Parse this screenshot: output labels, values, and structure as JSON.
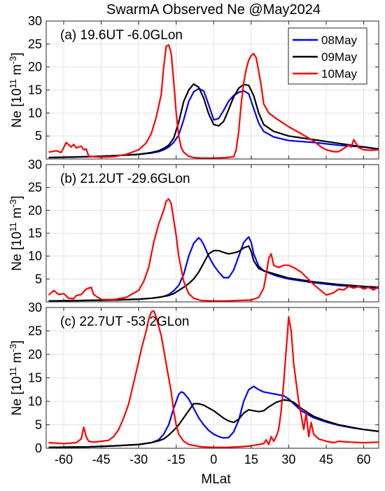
{
  "figure_title": "SwarmA Observed Ne @May2024",
  "chart_data": [
    {
      "type": "line",
      "title": "(a) 19.6UT -6.0GLon",
      "xlabel": "",
      "ylabel": "Ne [10^11 m^-3]",
      "ylabel_main": "Ne [10",
      "ylabel_exp1": "11",
      "ylabel_mid": " m",
      "ylabel_exp2": "-3",
      "ylabel_end": "]",
      "xlim": [
        -67,
        66
      ],
      "ylim": [
        0,
        30
      ],
      "yticks": [
        5,
        10,
        15,
        20,
        25,
        30
      ],
      "xticks": [
        -60,
        -45,
        -30,
        -15,
        0,
        15,
        30,
        45,
        60
      ],
      "grid": true,
      "legend": "top-right",
      "series": [
        {
          "name": "08May",
          "color": "#0000ff",
          "x": [
            -66,
            -50,
            -40,
            -30,
            -25,
            -22,
            -20,
            -18,
            -16,
            -14,
            -12,
            -10,
            -8,
            -6,
            -4,
            -2,
            0,
            2,
            4,
            6,
            8,
            10,
            12,
            14,
            16,
            18,
            20,
            24,
            30,
            40,
            50,
            60,
            66
          ],
          "y": [
            0.3,
            0.5,
            0.7,
            1.0,
            1.3,
            1.6,
            2.0,
            2.6,
            3.6,
            5.2,
            8.5,
            12.5,
            14.6,
            15.3,
            14.8,
            11.8,
            8.5,
            8.8,
            10.6,
            12.6,
            13.8,
            14.5,
            14.8,
            14.2,
            11.0,
            7.8,
            6.0,
            4.8,
            4.0,
            3.6,
            3.0,
            2.6,
            2.2
          ]
        },
        {
          "name": "09May",
          "color": "#000000",
          "x": [
            -66,
            -50,
            -40,
            -30,
            -25,
            -22,
            -20,
            -18,
            -16,
            -14,
            -12,
            -10,
            -8,
            -6,
            -4,
            -2,
            0,
            2,
            4,
            6,
            8,
            10,
            12,
            14,
            16,
            18,
            20,
            24,
            30,
            40,
            50,
            60,
            66
          ],
          "y": [
            0.3,
            0.5,
            0.7,
            1.0,
            1.4,
            1.8,
            2.3,
            3.0,
            4.5,
            8.0,
            12.5,
            15.0,
            16.3,
            15.6,
            13.2,
            9.8,
            7.5,
            7.2,
            8.2,
            10.8,
            13.5,
            15.4,
            16.2,
            16.0,
            13.8,
            10.0,
            7.5,
            6.0,
            5.0,
            4.2,
            3.4,
            2.6,
            2.1
          ]
        },
        {
          "name": "10May",
          "color": "#ff0000",
          "x": [
            -66,
            -63,
            -61,
            -59,
            -57,
            -56,
            -55,
            -53,
            -52,
            -51,
            -50,
            -45,
            -40,
            -35,
            -30,
            -27,
            -25,
            -23,
            -21,
            -20,
            -19,
            -18,
            -17,
            -16,
            -15,
            -14,
            -13,
            -12,
            -11,
            -10,
            -8,
            -5,
            0,
            5,
            8,
            9,
            10,
            11,
            12,
            13,
            14,
            15,
            16,
            17,
            18,
            19,
            20,
            22,
            25,
            30,
            35,
            40,
            43,
            45,
            48,
            50,
            52,
            54,
            55,
            56,
            58,
            60,
            63,
            66
          ],
          "y": [
            1.5,
            1.8,
            1.4,
            3.6,
            2.6,
            3.2,
            2.4,
            2.8,
            2.0,
            2.2,
            0.6,
            0.4,
            0.5,
            1.0,
            2.0,
            3.5,
            5.5,
            9.0,
            14.0,
            20.0,
            24.5,
            24.8,
            23.0,
            17.0,
            10.0,
            5.0,
            2.5,
            1.5,
            1.0,
            0.6,
            0.3,
            0.2,
            0.2,
            0.3,
            0.5,
            2.0,
            6.0,
            12.0,
            16.5,
            19.5,
            21.5,
            22.5,
            22.9,
            22.0,
            19.0,
            16.0,
            12.0,
            10.0,
            8.8,
            7.0,
            5.5,
            3.9,
            2.6,
            2.0,
            1.6,
            1.6,
            2.3,
            3.0,
            2.6,
            4.2,
            2.5,
            2.0,
            1.9,
            2.0
          ]
        }
      ]
    },
    {
      "type": "line",
      "title": "(b) 21.2UT -29.6GLon",
      "xlabel": "",
      "ylabel": "Ne [10^11 m^-3]",
      "ylabel_main": "Ne [10",
      "ylabel_exp1": "11",
      "ylabel_mid": " m",
      "ylabel_exp2": "-3",
      "ylabel_end": "]",
      "xlim": [
        -67,
        66
      ],
      "ylim": [
        0,
        30
      ],
      "yticks": [
        5,
        10,
        15,
        20,
        25,
        30
      ],
      "xticks": [
        -60,
        -45,
        -30,
        -15,
        0,
        15,
        30,
        45,
        60
      ],
      "grid": true,
      "series": [
        {
          "name": "08May",
          "color": "#0000ff",
          "x": [
            -66,
            -40,
            -30,
            -25,
            -22,
            -20,
            -18,
            -16,
            -14,
            -12,
            -10,
            -8,
            -6,
            -5,
            -4,
            -2,
            0,
            2,
            4,
            6,
            8,
            10,
            12,
            14,
            15,
            16,
            18,
            20,
            25,
            30,
            40,
            50,
            60,
            66
          ],
          "y": [
            0.2,
            0.4,
            0.6,
            0.8,
            1.0,
            1.2,
            1.6,
            2.4,
            3.6,
            6.0,
            10.0,
            12.8,
            14.0,
            13.5,
            12.5,
            10.0,
            8.0,
            6.5,
            5.3,
            5.3,
            7.0,
            10.0,
            13.0,
            14.2,
            13.0,
            10.5,
            7.8,
            6.8,
            5.7,
            5.0,
            4.2,
            3.6,
            3.2,
            3.0
          ]
        },
        {
          "name": "09May",
          "color": "#000000",
          "x": [
            -66,
            -40,
            -30,
            -25,
            -22,
            -20,
            -18,
            -16,
            -14,
            -12,
            -10,
            -8,
            -6,
            -4,
            -2,
            0,
            2,
            4,
            6,
            8,
            10,
            12,
            14,
            15,
            16,
            18,
            20,
            25,
            30,
            40,
            50,
            60,
            66
          ],
          "y": [
            0.2,
            0.4,
            0.6,
            0.8,
            1.0,
            1.2,
            1.4,
            1.8,
            2.5,
            3.2,
            4.0,
            5.0,
            6.5,
            8.5,
            10.5,
            11.2,
            11.2,
            10.8,
            10.5,
            10.7,
            11.0,
            11.8,
            12.2,
            11.0,
            9.0,
            7.3,
            6.8,
            6.0,
            5.2,
            4.4,
            3.8,
            3.4,
            3.2
          ]
        },
        {
          "name": "10May",
          "color": "#ff0000",
          "x": [
            -66,
            -64,
            -62,
            -60,
            -58,
            -56,
            -55,
            -53,
            -51,
            -49,
            -48,
            -45,
            -40,
            -35,
            -30,
            -28,
            -26,
            -24,
            -22,
            -20,
            -19,
            -18,
            -17,
            -16,
            -15,
            -14,
            -12,
            -10,
            -8,
            -5,
            0,
            5,
            10,
            15,
            18,
            20,
            21,
            22,
            23,
            24,
            26,
            28,
            30,
            32,
            35,
            40,
            45,
            48,
            50,
            52,
            54,
            56,
            58,
            60,
            62,
            64,
            66
          ],
          "y": [
            1.5,
            2.5,
            1.6,
            1.8,
            0.8,
            0.7,
            1.4,
            1.6,
            2.8,
            3.2,
            1.6,
            0.5,
            0.5,
            1.0,
            2.5,
            4.5,
            7.5,
            13.0,
            17.0,
            20.0,
            22.0,
            22.5,
            21.5,
            18.0,
            14.5,
            10.0,
            4.5,
            1.8,
            0.8,
            0.3,
            0.2,
            0.2,
            0.3,
            0.4,
            1.0,
            3.0,
            6.0,
            9.5,
            10.5,
            8.0,
            7.5,
            8.0,
            8.0,
            7.5,
            6.5,
            3.8,
            1.5,
            2.0,
            2.8,
            2.6,
            3.4,
            3.0,
            3.4,
            2.8,
            3.2,
            2.6,
            3.4
          ]
        }
      ]
    },
    {
      "type": "line",
      "title": "(c) 22.7UT -53.2GLon",
      "xlabel": "MLat",
      "ylabel": "Ne [10^11 m^-3]",
      "ylabel_main": "Ne [10",
      "ylabel_exp1": "11",
      "ylabel_mid": " m",
      "ylabel_exp2": "-3",
      "ylabel_end": "]",
      "xlim": [
        -67,
        66
      ],
      "ylim": [
        0,
        30
      ],
      "yticks": [
        0,
        5,
        10,
        15,
        20,
        25,
        30
      ],
      "xticks": [
        -60,
        -45,
        -30,
        -15,
        0,
        15,
        30,
        45,
        60
      ],
      "grid": true,
      "series": [
        {
          "name": "08May",
          "color": "#0000ff",
          "x": [
            -66,
            -50,
            -40,
            -30,
            -25,
            -22,
            -20,
            -18,
            -16,
            -14,
            -13,
            -12,
            -10,
            -8,
            -6,
            -4,
            -2,
            0,
            2,
            4,
            6,
            8,
            10,
            12,
            14,
            16,
            18,
            20,
            22,
            25,
            28,
            30,
            32,
            35,
            40,
            45,
            50,
            55,
            60,
            66
          ],
          "y": [
            0.2,
            0.3,
            0.5,
            0.8,
            1.2,
            1.8,
            3.0,
            5.0,
            8.5,
            11.5,
            12.0,
            11.8,
            10.5,
            8.5,
            6.5,
            5.0,
            3.8,
            3.0,
            2.5,
            2.2,
            2.3,
            3.5,
            6.0,
            10.0,
            12.5,
            13.2,
            12.5,
            12.0,
            11.8,
            11.5,
            11.2,
            10.5,
            9.5,
            8.0,
            6.5,
            5.6,
            4.9,
            4.4,
            4.0,
            3.6
          ]
        },
        {
          "name": "09May",
          "color": "#000000",
          "x": [
            -66,
            -50,
            -40,
            -30,
            -25,
            -22,
            -20,
            -18,
            -16,
            -14,
            -12,
            -10,
            -8,
            -6,
            -4,
            -2,
            0,
            2,
            4,
            6,
            8,
            10,
            12,
            14,
            16,
            18,
            20,
            22,
            25,
            28,
            30,
            32,
            35,
            40,
            45,
            50,
            55,
            60,
            66
          ],
          "y": [
            0.2,
            0.3,
            0.5,
            0.8,
            1.2,
            1.6,
            2.0,
            2.8,
            3.8,
            5.0,
            6.5,
            8.0,
            9.5,
            9.5,
            9.2,
            8.6,
            8.0,
            7.2,
            6.4,
            5.8,
            5.5,
            6.2,
            7.5,
            8.2,
            8.0,
            7.8,
            8.0,
            8.8,
            9.8,
            10.3,
            10.2,
            9.8,
            8.5,
            6.8,
            5.8,
            5.0,
            4.5,
            4.0,
            3.6
          ]
        },
        {
          "name": "10May",
          "color": "#ff0000",
          "x": [
            -66,
            -60,
            -55,
            -53,
            -52,
            -51,
            -50,
            -48,
            -45,
            -42,
            -40,
            -38,
            -36,
            -34,
            -32,
            -30,
            -29,
            -28,
            -27,
            -26,
            -25,
            -24,
            -23,
            -22,
            -21,
            -20,
            -19,
            -18,
            -17,
            -16,
            -15,
            -14,
            -12,
            -10,
            -5,
            0,
            5,
            10,
            15,
            20,
            21,
            22,
            23,
            24,
            25,
            26,
            27,
            28,
            29,
            30,
            31,
            32,
            33,
            34,
            35,
            36,
            37,
            38,
            39,
            40,
            42,
            45,
            48,
            50,
            52,
            55,
            60,
            66
          ],
          "y": [
            1.2,
            1.0,
            1.2,
            2.0,
            4.5,
            2.5,
            1.5,
            1.3,
            1.5,
            1.7,
            2.5,
            4.0,
            6.5,
            9.5,
            14.0,
            18.5,
            21.0,
            23.0,
            25.0,
            27.5,
            29.0,
            29.3,
            28.0,
            26.0,
            24.0,
            21.0,
            18.0,
            15.0,
            12.0,
            8.0,
            5.0,
            3.0,
            1.5,
            0.8,
            0.3,
            0.2,
            0.2,
            0.3,
            0.5,
            1.0,
            1.8,
            0.8,
            2.5,
            1.5,
            2.5,
            4.0,
            8.0,
            14.0,
            21.0,
            28.0,
            25.0,
            18.0,
            14.0,
            10.0,
            7.0,
            4.0,
            7.5,
            2.5,
            5.5,
            3.0,
            2.0,
            1.5,
            1.2,
            1.5,
            1.4,
            1.3,
            1.2,
            1.3
          ]
        }
      ]
    }
  ]
}
